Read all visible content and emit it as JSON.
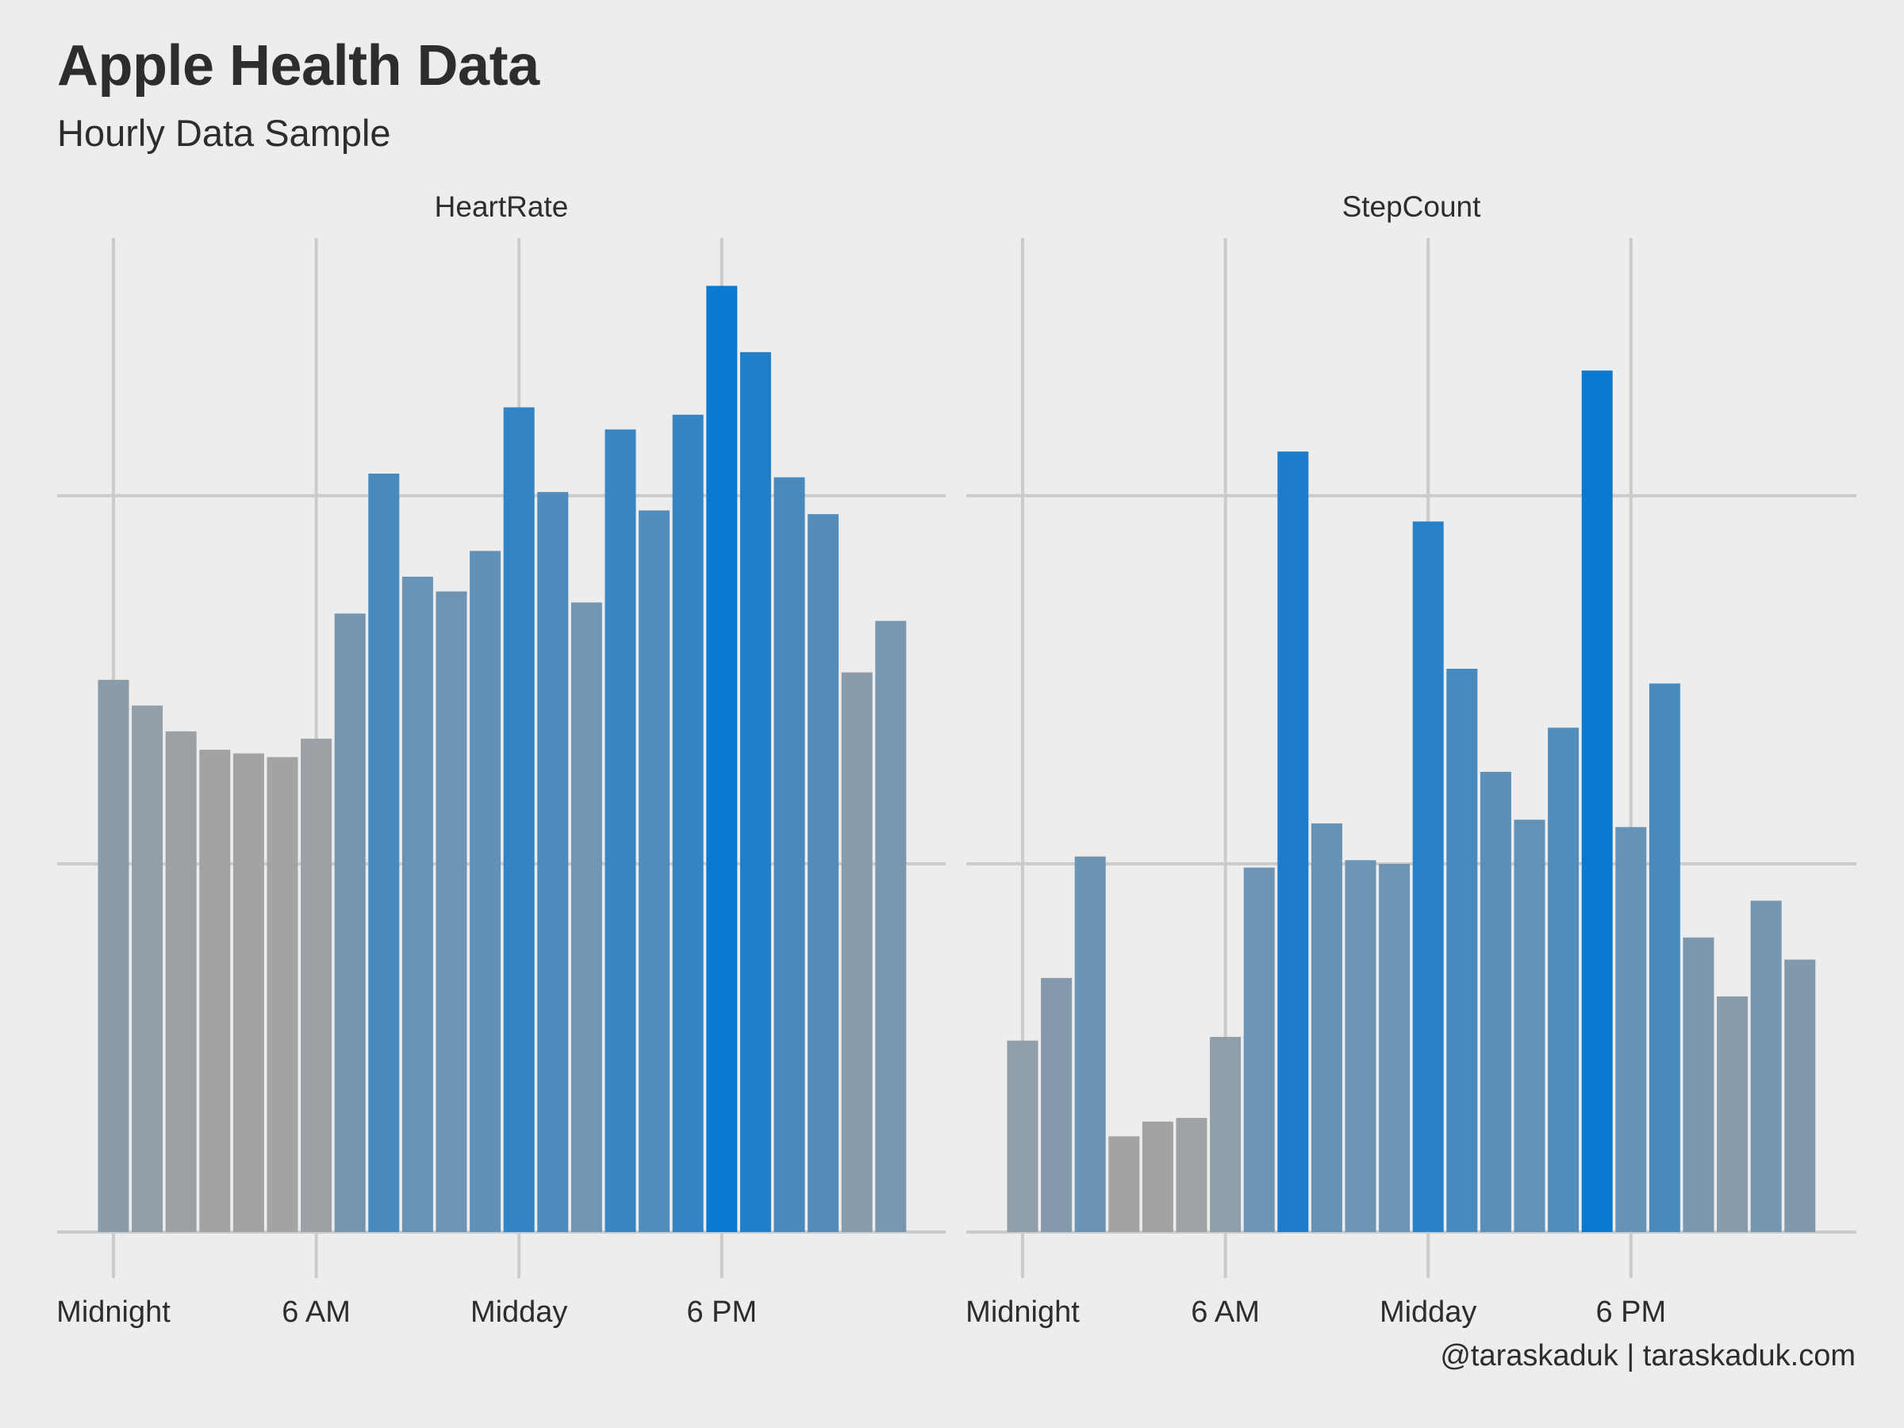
{
  "title": "Apple Health Data",
  "subtitle": "Hourly Data Sample",
  "caption": "@taraskaduk | taraskaduk.com",
  "colors": {
    "background": "#ededed",
    "grid": "#cbcbcb",
    "low": "#a3a3a3",
    "high": "#0b79d0"
  },
  "chart_data": [
    {
      "type": "bar",
      "panel": "HeartRate",
      "x": [
        0,
        1,
        2,
        3,
        4,
        5,
        6,
        7,
        8,
        9,
        10,
        11,
        12,
        13,
        14,
        15,
        16,
        17,
        18,
        19,
        20,
        21,
        22,
        23
      ],
      "xtick_positions": [
        0,
        6,
        12,
        18
      ],
      "xtick_labels": [
        "Midnight",
        "6 AM",
        "Midday",
        "6 PM"
      ],
      "values": [
        1.5,
        1.43,
        1.36,
        1.31,
        1.3,
        1.29,
        1.34,
        1.68,
        2.06,
        1.78,
        1.74,
        1.85,
        2.24,
        2.01,
        1.71,
        2.18,
        1.96,
        2.22,
        2.57,
        2.39,
        2.05,
        1.95,
        1.52,
        1.66
      ],
      "ylim": [
        0,
        2.7
      ],
      "ygrid": [
        0,
        1,
        2
      ],
      "y_tick_labels_shown": false,
      "grid": true
    },
    {
      "type": "bar",
      "panel": "StepCount",
      "x": [
        0,
        1,
        2,
        3,
        4,
        5,
        6,
        7,
        8,
        9,
        10,
        11,
        12,
        13,
        14,
        15,
        16,
        17,
        18,
        19,
        20,
        21,
        22,
        23
      ],
      "xtick_positions": [
        0,
        6,
        12,
        18
      ],
      "xtick_labels": [
        "Midnight",
        "6 AM",
        "Midday",
        "6 PM"
      ],
      "values": [
        0.52,
        0.69,
        1.02,
        0.26,
        0.3,
        0.31,
        0.53,
        0.99,
        2.12,
        1.11,
        1.01,
        1.0,
        1.93,
        1.53,
        1.25,
        1.12,
        1.37,
        2.34,
        1.1,
        1.49,
        0.8,
        0.64,
        0.9,
        0.74
      ],
      "ylim": [
        0,
        2.7
      ],
      "ygrid": [
        0,
        1,
        2
      ],
      "y_tick_labels_shown": false,
      "grid": true
    }
  ]
}
